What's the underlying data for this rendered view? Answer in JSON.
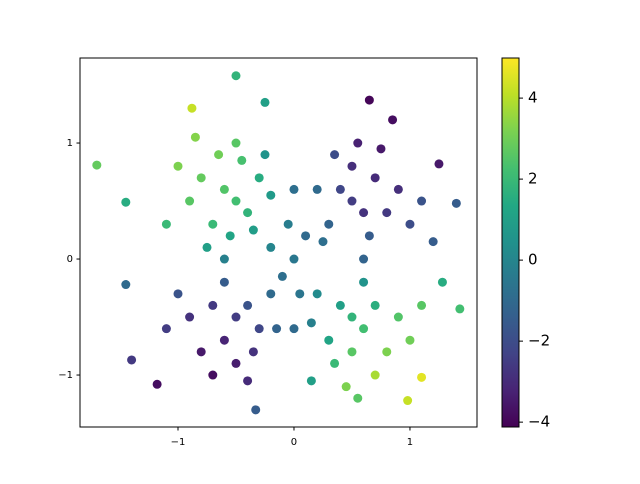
{
  "chart_data": {
    "type": "scatter",
    "colormap": "viridis",
    "x": [
      -0.5,
      -0.6,
      -0.4,
      -0.7,
      -0.3,
      -0.8,
      -0.55,
      -0.9,
      -0.45,
      -0.2,
      -0.65,
      -1.0,
      -0.35,
      -0.75,
      -1.1,
      -0.5,
      -0.25,
      -0.85,
      0.5,
      0.6,
      0.4,
      0.3,
      0.7,
      0.8,
      0.5,
      0.2,
      0.65,
      0.9,
      0.35,
      1.0,
      0.55,
      0.75,
      0.25,
      1.1,
      -0.5,
      -0.6,
      -0.4,
      -0.3,
      -0.7,
      -0.8,
      -0.5,
      -0.2,
      -0.9,
      -0.6,
      -0.35,
      -1.0,
      -0.7,
      -0.4,
      -0.15,
      -1.1,
      0.5,
      0.6,
      0.4,
      0.3,
      0.7,
      0.8,
      0.5,
      0.2,
      0.9,
      0.6,
      0.35,
      1.0,
      0.7,
      0.45,
      0.15,
      1.1,
      0,
      0.1,
      -0.1,
      0.05,
      -0.05,
      0,
      0,
      0.6,
      -0.6,
      -0.2,
      -0.5,
      -0.88,
      -1.7,
      -1.45,
      -1.45,
      -1.4,
      -1.18,
      -0.33,
      0.65,
      0.85,
      1.25,
      1.4,
      1.43,
      1.1,
      0.98,
      0.55,
      1.28,
      0.15,
      -0.25,
      1.2
    ],
    "values": [
      0.5,
      0.6,
      0.4,
      0.3,
      0.7,
      0.7,
      0.2,
      0.5,
      0.85,
      0.55,
      0.9,
      0.8,
      0.25,
      0.1,
      0.3,
      1.0,
      0.9,
      1.05,
      0.5,
      0.4,
      0.6,
      0.3,
      0.7,
      0.4,
      0.8,
      0.6,
      0.2,
      0.6,
      0.9,
      0.3,
      1.0,
      0.95,
      0.15,
      0.5,
      -0.5,
      -0.7,
      -0.4,
      -0.6,
      -0.4,
      -0.8,
      -0.9,
      -0.3,
      -0.5,
      -0.2,
      -0.8,
      -0.3,
      -1.0,
      -1.05,
      -0.6,
      -0.6,
      -0.5,
      -0.6,
      -0.4,
      -0.7,
      -0.4,
      -0.8,
      -0.8,
      -0.3,
      -0.5,
      -0.2,
      -0.9,
      -0.7,
      -1.0,
      -1.1,
      -0.55,
      -0.4,
      0,
      0.2,
      -0.15,
      -0.3,
      0.3,
      0.6,
      -0.6,
      0,
      0,
      0.1,
      1.58,
      1.3,
      0.81,
      0.49,
      -0.22,
      -0.87,
      -1.08,
      -1.3,
      1.37,
      1.2,
      0.82,
      0.48,
      -0.43,
      -1.02,
      -1.22,
      -1.2,
      -0.2,
      -1.05,
      1.35,
      0.15
    ],
    "color_values": [
      2.2,
      2.5,
      1.8,
      2.0,
      1.5,
      2.8,
      1.2,
      2.6,
      2.3,
      0.8,
      3.0,
      3.2,
      0.9,
      1.0,
      2.0,
      2.6,
      0.5,
      3.3,
      -2.5,
      -2.8,
      -2.2,
      -1.2,
      -3.0,
      -2.6,
      -2.9,
      -1.0,
      -1.5,
      -2.9,
      -2.0,
      -2.0,
      -3.3,
      -3.5,
      -0.8,
      -1.8,
      -2.5,
      -3.2,
      -1.8,
      -2.2,
      -2.6,
      -3.5,
      -3.4,
      -1.0,
      -2.8,
      -1.5,
      -2.8,
      -1.8,
      -3.8,
      -3.0,
      -1.2,
      -2.5,
      1.8,
      2.2,
      1.0,
      1.2,
      1.6,
      3.2,
      2.6,
      0.2,
      2.5,
      0.5,
      2.0,
      3.0,
      3.8,
      3.2,
      -0.2,
      2.6,
      -0.5,
      -1.0,
      -0.8,
      -0.6,
      -0.3,
      -0.8,
      -1.0,
      -1.2,
      -0.2,
      0.0,
      1.8,
      4.2,
      2.8,
      1.5,
      -1.0,
      -2.6,
      -3.8,
      -1.5,
      -4.0,
      -3.8,
      -3.5,
      -1.5,
      2.2,
      4.6,
      4.2,
      2.6,
      1.5,
      1.0,
      1.0,
      -1.5
    ],
    "xlim": [
      -1.845,
      1.578
    ],
    "ylim": [
      -1.448,
      1.733
    ],
    "clim": [
      -4.12,
      4.99
    ],
    "xticks": [
      {
        "value": -1,
        "label": "−1"
      },
      0,
      1
    ],
    "yticks": [
      {
        "value": -1,
        "label": "−1"
      },
      0,
      1
    ],
    "cticks": [
      {
        "value": -4,
        "label": "−4"
      },
      {
        "value": -2,
        "label": "−2"
      },
      0,
      2,
      4
    ]
  }
}
